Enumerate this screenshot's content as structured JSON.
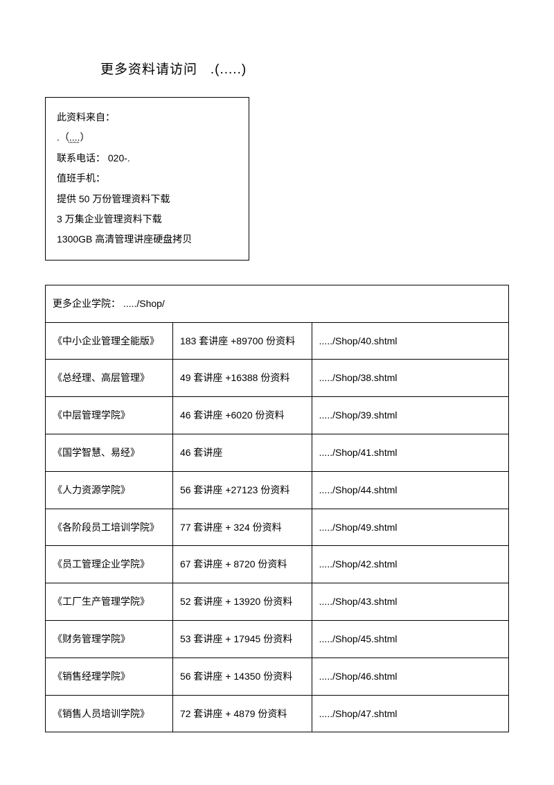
{
  "heading": {
    "prefix": "更多资料请访问",
    "suffix": ".(.....)"
  },
  "infoBox": {
    "line1": "此资料来自：",
    "line2_prefix": ".（",
    "line2_dots": "....",
    "line2_suffix": "）",
    "line3": "联系电话： 020-.",
    "line4": "值班手机：",
    "line5": "提供 50 万份管理资料下载",
    "line6": "3 万集企业管理资料下载",
    "line7": "1300GB 高清管理讲座硬盘拷贝"
  },
  "tableHeader": {
    "text": "更多企业学院：  ...../Shop/"
  },
  "rows": [
    {
      "name": "《中小企业管理全能版》",
      "content": "183 套讲座 +89700 份资料",
      "url": "...../Shop/40.shtml"
    },
    {
      "name": "《总经理、高层管理》",
      "content": "49 套讲座 +16388 份资料",
      "url": "...../Shop/38.shtml"
    },
    {
      "name": "《中层管理学院》",
      "content": "46 套讲座 +6020 份资料",
      "url": "...../Shop/39.shtml"
    },
    {
      "name": "《国学智慧、易经》",
      "content": "46 套讲座",
      "url": "...../Shop/41.shtml"
    },
    {
      "name": "《人力资源学院》",
      "content": "56 套讲座 +27123 份资料",
      "url": "...../Shop/44.shtml"
    },
    {
      "name": "《各阶段员工培训学院》",
      "content": "77 套讲座 + 324 份资料",
      "url": "...../Shop/49.shtml"
    },
    {
      "name": "《员工管理企业学院》",
      "content": "67 套讲座 + 8720 份资料",
      "url": "...../Shop/42.shtml"
    },
    {
      "name": "《工厂生产管理学院》",
      "content": "52 套讲座 + 13920 份资料",
      "url": "...../Shop/43.shtml"
    },
    {
      "name": "《财务管理学院》",
      "content": "53 套讲座 + 17945 份资料",
      "url": "...../Shop/45.shtml"
    },
    {
      "name": "《销售经理学院》",
      "content": "56 套讲座 + 14350 份资料",
      "url": "...../Shop/46.shtml"
    },
    {
      "name": "《销售人员培训学院》",
      "content": "72 套讲座 + 4879 份资料",
      "url": "...../Shop/47.shtml"
    }
  ]
}
